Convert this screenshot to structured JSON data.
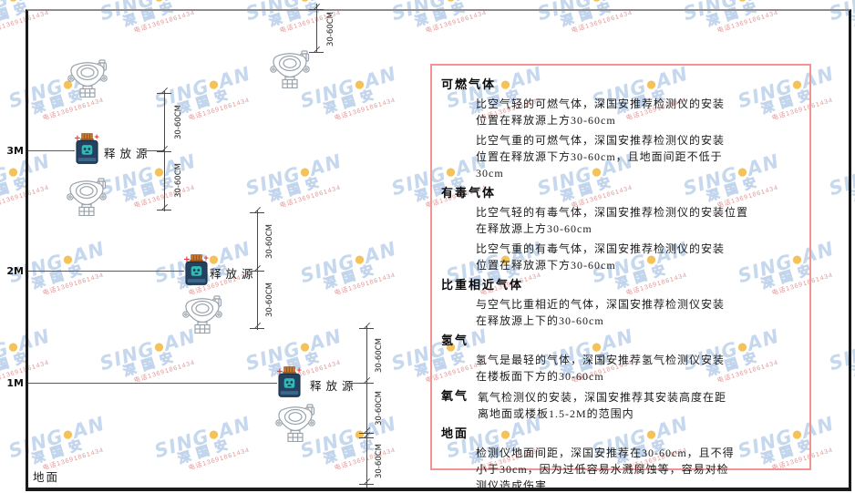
{
  "watermark": {
    "brand_prefix": "SING",
    "dot": "●",
    "brand_suffix": "AN",
    "cn": "深国安",
    "red": "电话13691861434"
  },
  "diagram": {
    "levels": {
      "m3": "3M",
      "m2": "2M",
      "m1": "1M"
    },
    "ground_label": "地面",
    "release_source_label": "释放源",
    "dim_label": "30-60CM"
  },
  "panel": {
    "sections": [
      {
        "heading": "可燃气体",
        "paragraphs": [
          [
            "比空气轻的可燃气体，深国安推荐检测仪的安装",
            "位置在释放源上方30-60cm"
          ],
          [
            "比空气重的可燃气体，深国安推荐检测仪的安装",
            "位置在释放源下方30-60cm，且地面间距不低于",
            "30cm"
          ]
        ]
      },
      {
        "heading": "有毒气体",
        "paragraphs": [
          [
            "比空气轻的有毒气体，深国安推荐检测仪的安装位置",
            "在释放源上方30-60cm"
          ],
          [
            "比空气重的有毒气体，深国安推荐检测仪的安装",
            "位置在释放源下方30-60cm"
          ]
        ]
      },
      {
        "heading": "比重相近气体",
        "paragraphs": [
          [
            "与空气比重相近的气体，深国安推荐检测仪安装",
            "在释放源上下的30-60cm"
          ]
        ]
      },
      {
        "heading": "氢气",
        "paragraphs": [
          [
            "氢气是最轻的气体，深国安推荐氢气检测仪安装",
            "在楼板面下方的30-60cm"
          ]
        ]
      },
      {
        "heading": "氧气",
        "paragraphs": [
          [
            "氧气检测仪的安装，深国安推荐其安装高度在距",
            "离地面或楼板1.5-2M的范围内"
          ]
        ]
      },
      {
        "heading": "地面",
        "paragraphs": [
          [
            "检测仪地面间距，深国安推荐在30-60cm，且不得",
            "小于30cm，因为过低容易水溅腐蚀等，容易对检",
            "测仪造成伤害"
          ]
        ]
      }
    ]
  },
  "colors": {
    "panel_border": "#f09494",
    "watermark_blue": "#b9cfe9",
    "watermark_dot": "#f2b32f",
    "bottle_navy": "#24425f",
    "bottle_cap_orange": "#c9772e",
    "skull_teal": "#35b8b8",
    "spark_red": "#e04040"
  }
}
